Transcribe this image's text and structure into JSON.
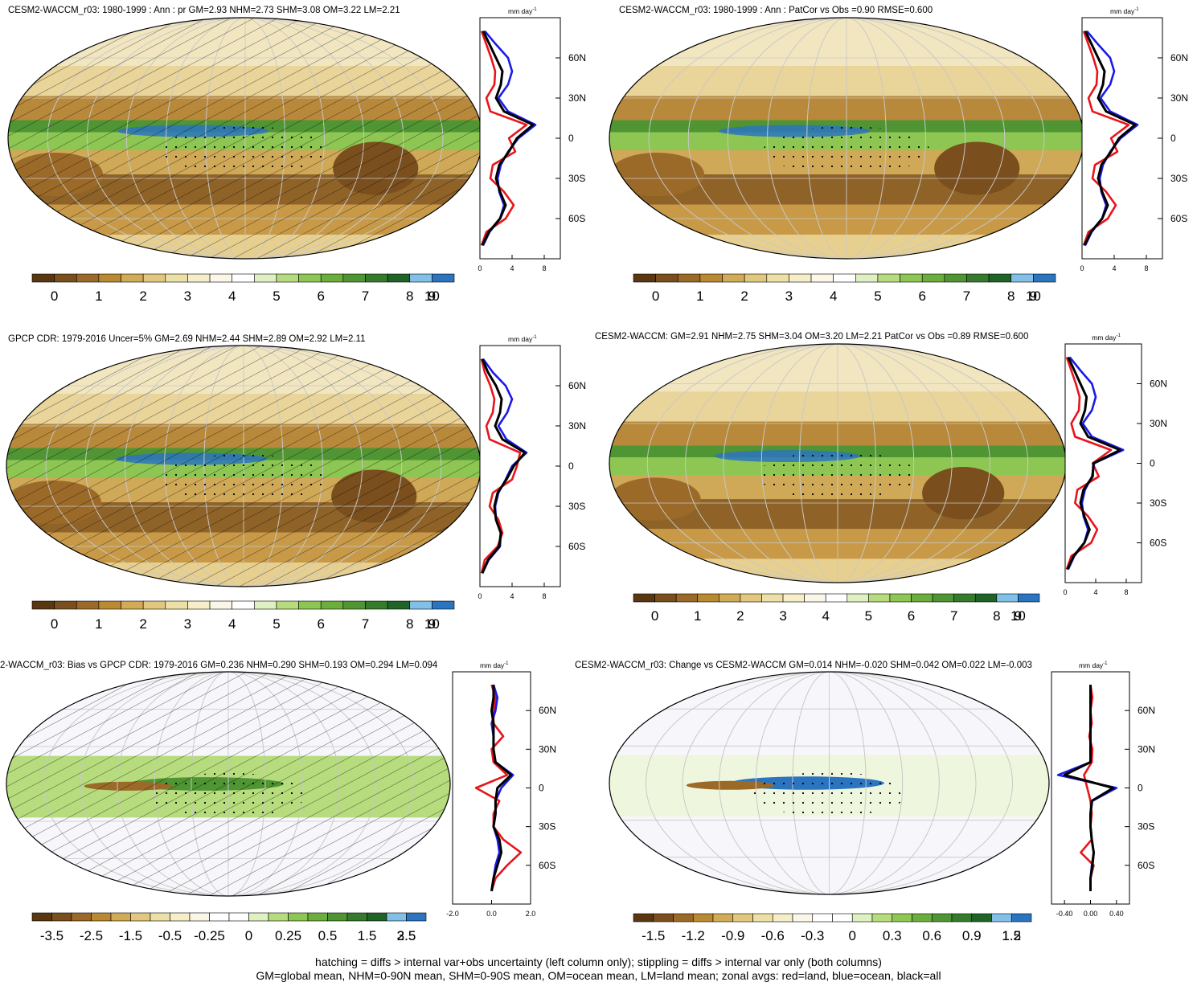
{
  "palettes": {
    "abs": [
      "#5a3710",
      "#7a4f1d",
      "#9c6a28",
      "#ba8a33",
      "#d1ab55",
      "#e2c87e",
      "#ede0a6",
      "#f5eec9",
      "#fbf7e8",
      "#ffffff",
      "#dff0c2",
      "#b6dc7d",
      "#8dc653",
      "#6cae3c",
      "#4f9533",
      "#367b2c",
      "#1f6326",
      "#82c0e8",
      "#2a74c0"
    ],
    "diff": [
      "#5a3710",
      "#7a4f1d",
      "#9c6a28",
      "#ba8a33",
      "#d1ab55",
      "#e2c87e",
      "#ede0a6",
      "#f5eec9",
      "#fbf7e8",
      "#ffffff",
      "#ffffff",
      "#dff0c2",
      "#b6dc7d",
      "#8dc653",
      "#6cae3c",
      "#4f9533",
      "#367b2c",
      "#1f6326",
      "#82c0e8",
      "#2a74c0"
    ]
  },
  "zonal_units": "mm day",
  "zonal_units_exp": "-1",
  "lat_labels": [
    "60N",
    "30N",
    "0",
    "30S",
    "60S"
  ],
  "legend_colors": {
    "land": "#e8141b",
    "ocean": "#1a1ae8",
    "all": "#000000"
  },
  "footer": {
    "line1": "hatching = diffs > internal var+obs uncertainty (left column only); stippling = diffs > internal var only (both columns)",
    "line2": "GM=global mean, NHM=0-90N mean, SHM=0-90S mean, OM=ocean mean, LM=land mean; zonal avgs: red=land, blue=ocean, black=all"
  },
  "chart_data": [
    {
      "type": "heatmap",
      "id": "p1",
      "title": "CESM2-WACCM_r03: 1980-1999 : Ann : pr GM=2.93 NHM=2.73 SHM=3.08 OM=3.22 LM=2.21",
      "palette": "abs",
      "colorbar_labels": [
        "0",
        "1",
        "2",
        "3",
        "4",
        "5",
        "6",
        "7",
        "8",
        "9",
        "10"
      ],
      "zonal_xticks": [
        "0",
        "4",
        "8"
      ],
      "zonal_xlim": [
        0,
        10
      ],
      "hatching": true,
      "stippling": true,
      "zonal": {
        "lat": [
          -80,
          -70,
          -60,
          -50,
          -40,
          -30,
          -20,
          -10,
          0,
          10,
          20,
          30,
          40,
          50,
          60,
          70,
          80
        ],
        "all": [
          0.3,
          1.1,
          2.5,
          3.2,
          2.5,
          2.0,
          2.4,
          3.6,
          4.6,
          6.6,
          3.0,
          2.0,
          2.6,
          2.8,
          2.0,
          1.2,
          0.4
        ],
        "land": [
          0.2,
          0.8,
          3.2,
          4.2,
          3.0,
          1.3,
          1.6,
          4.4,
          3.6,
          5.8,
          1.3,
          0.8,
          1.8,
          1.9,
          1.4,
          0.8,
          0.2
        ],
        "ocean": [
          0.4,
          1.2,
          2.5,
          3.0,
          2.4,
          2.2,
          2.6,
          3.5,
          4.8,
          6.9,
          3.5,
          2.3,
          3.5,
          4.0,
          3.5,
          2.0,
          0.6
        ]
      }
    },
    {
      "type": "heatmap",
      "id": "p2",
      "title": "CESM2-WACCM_r03: 1980-1999 : Ann : PatCor vs Obs =0.90 RMSE=0.600",
      "palette": "abs",
      "colorbar_labels": [
        "0",
        "1",
        "2",
        "3",
        "4",
        "5",
        "6",
        "7",
        "8",
        "9",
        "10"
      ],
      "zonal_xticks": [
        "0",
        "4",
        "8"
      ],
      "zonal_xlim": [
        0,
        10
      ],
      "hatching": false,
      "stippling": true,
      "zonal": {
        "lat": [
          -80,
          -70,
          -60,
          -50,
          -40,
          -30,
          -20,
          -10,
          0,
          10,
          20,
          30,
          40,
          50,
          60,
          70,
          80
        ],
        "all": [
          0.3,
          1.1,
          2.5,
          3.2,
          2.5,
          2.0,
          2.4,
          3.6,
          4.6,
          6.6,
          3.0,
          2.0,
          2.6,
          2.8,
          2.0,
          1.2,
          0.4
        ],
        "land": [
          0.2,
          0.8,
          3.2,
          4.2,
          3.0,
          1.3,
          1.6,
          4.4,
          3.6,
          5.8,
          1.3,
          0.8,
          1.8,
          1.9,
          1.4,
          0.8,
          0.2
        ],
        "ocean": [
          0.4,
          1.2,
          2.5,
          3.0,
          2.4,
          2.2,
          2.6,
          3.5,
          4.8,
          6.9,
          3.5,
          2.3,
          3.5,
          4.0,
          3.5,
          2.0,
          0.6
        ]
      }
    },
    {
      "type": "heatmap",
      "id": "p3",
      "title": "GPCP CDR: 1979-2016 Uncer=5% GM=2.69 NHM=2.44 SHM=2.89 OM=2.92 LM=2.11",
      "palette": "abs",
      "colorbar_labels": [
        "0",
        "1",
        "2",
        "3",
        "4",
        "5",
        "6",
        "7",
        "8",
        "9",
        "10"
      ],
      "zonal_xticks": [
        "0",
        "4",
        "8"
      ],
      "zonal_xlim": [
        0,
        10
      ],
      "hatching": true,
      "stippling": true,
      "zonal": {
        "lat": [
          -80,
          -70,
          -60,
          -50,
          -40,
          -30,
          -20,
          -10,
          0,
          10,
          20,
          30,
          40,
          50,
          60,
          70,
          80
        ],
        "all": [
          0.3,
          1.0,
          2.4,
          2.6,
          2.0,
          1.8,
          2.2,
          3.3,
          4.2,
          5.6,
          2.8,
          1.9,
          2.5,
          2.7,
          2.0,
          1.0,
          0.3
        ],
        "land": [
          0.2,
          0.6,
          2.2,
          2.8,
          2.3,
          1.2,
          1.6,
          4.0,
          4.6,
          5.0,
          1.2,
          0.8,
          1.6,
          1.8,
          1.3,
          0.6,
          0.2
        ],
        "ocean": [
          0.3,
          1.1,
          2.5,
          2.6,
          2.0,
          1.9,
          2.3,
          3.2,
          4.0,
          5.8,
          3.3,
          2.3,
          3.4,
          4.0,
          3.2,
          1.6,
          0.4
        ]
      }
    },
    {
      "type": "heatmap",
      "id": "p4",
      "title": "CESM2-WACCM: GM=2.91 NHM=2.75 SHM=3.04 OM=3.20 LM=2.21 PatCor vs Obs =0.89 RMSE=0.600",
      "palette": "abs",
      "colorbar_labels": [
        "0",
        "1",
        "2",
        "3",
        "4",
        "5",
        "6",
        "7",
        "8",
        "9",
        "10"
      ],
      "zonal_xticks": [
        "0",
        "4",
        "8"
      ],
      "zonal_xlim": [
        0,
        10
      ],
      "hatching": false,
      "stippling": true,
      "zonal": {
        "lat": [
          -80,
          -70,
          -60,
          -50,
          -40,
          -30,
          -20,
          -10,
          0,
          10,
          20,
          30,
          40,
          50,
          60,
          70,
          80
        ],
        "all": [
          0.3,
          1.1,
          2.5,
          3.2,
          2.5,
          2.0,
          2.4,
          3.6,
          3.7,
          7.2,
          3.0,
          2.0,
          2.6,
          2.8,
          2.0,
          1.2,
          0.4
        ],
        "land": [
          0.2,
          0.8,
          3.4,
          4.2,
          3.0,
          1.3,
          1.6,
          4.4,
          3.6,
          6.0,
          1.3,
          0.8,
          1.8,
          1.9,
          1.4,
          0.8,
          0.2
        ],
        "ocean": [
          0.4,
          1.2,
          2.5,
          3.0,
          2.4,
          2.2,
          2.6,
          3.5,
          3.8,
          7.6,
          3.5,
          2.3,
          3.5,
          4.0,
          3.5,
          2.0,
          0.6
        ]
      }
    },
    {
      "type": "heatmap",
      "id": "p5",
      "title": "2-WACCM_r03: Bias vs GPCP CDR: 1979-2016 GM=0.236 NHM=0.290 SHM=0.193 OM=0.294 LM=0.094",
      "palette": "diff",
      "colorbar_labels": [
        "-3.5",
        "-2.5",
        "-1.5",
        "-0.5",
        "-0.25",
        "0",
        "0.25",
        "0.5",
        "1.5",
        "2.5",
        "3.5"
      ],
      "zonal_xticks": [
        "-2.0",
        "0.0",
        "2.0"
      ],
      "zonal_xlim": [
        -2,
        2
      ],
      "hatching": true,
      "stippling": true,
      "zonal": {
        "lat": [
          -80,
          -70,
          -60,
          -50,
          -40,
          -30,
          -20,
          -10,
          0,
          10,
          20,
          30,
          40,
          50,
          60,
          70,
          80
        ],
        "all": [
          0.0,
          0.1,
          0.3,
          0.5,
          0.4,
          0.1,
          0.2,
          0.2,
          0.3,
          1.0,
          0.2,
          0.1,
          0.1,
          0.1,
          0.0,
          0.1,
          0.1
        ],
        "land": [
          0.0,
          0.2,
          0.8,
          1.5,
          0.6,
          0.1,
          0.1,
          0.4,
          -0.8,
          0.8,
          0.1,
          0.0,
          0.6,
          0.1,
          0.1,
          0.2,
          0.0
        ],
        "ocean": [
          0.0,
          0.1,
          0.2,
          0.4,
          0.3,
          0.1,
          0.2,
          0.2,
          0.5,
          1.1,
          0.2,
          0.1,
          0.1,
          0.0,
          0.2,
          0.3,
          0.1
        ]
      }
    },
    {
      "type": "heatmap",
      "id": "p6",
      "title": "CESM2-WACCM_r03: Change vs CESM2-WACCM GM=0.014 NHM=-0.020 SHM=0.042 OM=0.022 LM=-0.003",
      "palette": "diff",
      "colorbar_labels": [
        "-1.5",
        "-1.2",
        "-0.9",
        "-0.6",
        "-0.3",
        "0",
        "0.3",
        "0.6",
        "0.9",
        "1.2",
        "1.5"
      ],
      "zonal_xticks": [
        "-0.40",
        "0.00",
        "0.40"
      ],
      "zonal_xlim": [
        -0.6,
        0.6
      ],
      "hatching": false,
      "stippling": true,
      "zonal": {
        "lat": [
          -80,
          -70,
          -60,
          -50,
          -40,
          -30,
          -20,
          -10,
          0,
          10,
          20,
          30,
          40,
          50,
          60,
          70,
          80
        ],
        "all": [
          0.0,
          0.0,
          0.03,
          0.05,
          0.02,
          0.0,
          0.0,
          0.02,
          0.35,
          -0.4,
          0.0,
          0.0,
          0.0,
          0.0,
          0.0,
          0.0,
          0.0
        ],
        "land": [
          0.0,
          0.0,
          0.05,
          -0.15,
          0.02,
          0.0,
          0.02,
          0.0,
          -0.05,
          -0.1,
          0.02,
          0.03,
          -0.02,
          0.02,
          0.0,
          0.03,
          0.0
        ],
        "ocean": [
          0.0,
          0.0,
          0.02,
          0.05,
          0.02,
          0.0,
          0.0,
          0.03,
          0.4,
          -0.5,
          0.0,
          0.0,
          0.0,
          0.0,
          0.0,
          0.0,
          0.0
        ]
      }
    }
  ]
}
